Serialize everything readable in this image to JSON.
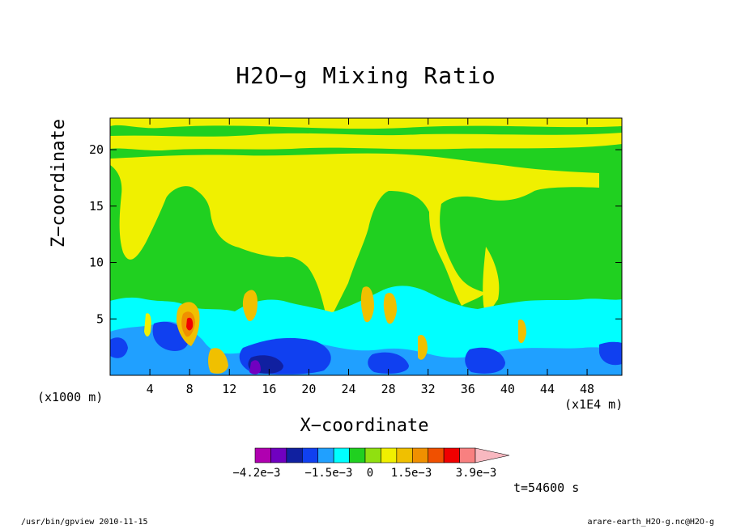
{
  "chart_data": {
    "type": "heatmap",
    "title": "H2O−g Mixing Ratio",
    "xlabel": "X−coordinate",
    "ylabel": "Z−coordinate",
    "x_unit": "(x1000 m)",
    "y_unit": "(x1E4 m)",
    "x_range": [
      0,
      51.5
    ],
    "y_range": [
      0,
      22.8
    ],
    "x_ticks": [
      4,
      8,
      12,
      16,
      20,
      24,
      28,
      32,
      36,
      40,
      44,
      48
    ],
    "y_ticks": [
      5,
      10,
      15,
      20
    ],
    "colorbar": {
      "colors": [
        "#b000b0",
        "#7000c0",
        "#1020a0",
        "#1040f0",
        "#20a0ff",
        "#00ffff",
        "#20d020",
        "#90e010",
        "#f0f000",
        "#f0c000",
        "#f09000",
        "#f05000",
        "#f00000",
        "#f88080",
        "#f8b8c0"
      ],
      "tick_labels": [
        "−4.2e−3",
        "−1.5e−3",
        "0",
        "1.5e−3",
        "3.9e−3"
      ]
    },
    "grid": false,
    "legend": "colorbar-bottom"
  },
  "annotations": {
    "time": "t=54600 s",
    "footer_left": "/usr/bin/gpview   2010-11-15",
    "footer_right": "arare-earth_H2O-g.nc@H2O-g"
  }
}
